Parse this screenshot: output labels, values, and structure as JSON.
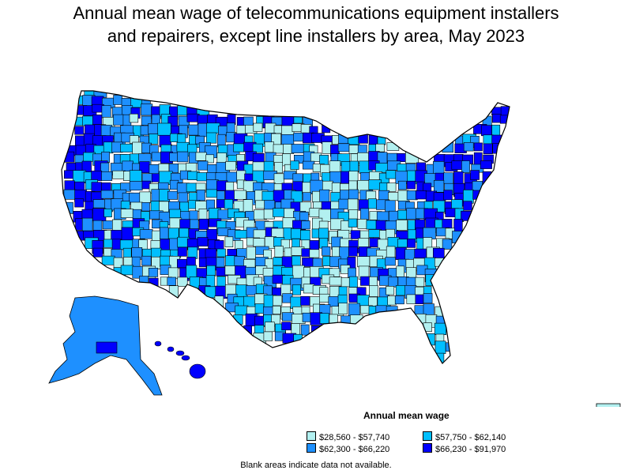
{
  "title": {
    "line1": "Annual mean wage of telecommunications equipment installers",
    "line2": "and repairers, except line installers by area, May 2023"
  },
  "legend": {
    "title": "Annual mean wage",
    "items": [
      {
        "label": "$28,560 - $57,740",
        "color": "#b2f0f0"
      },
      {
        "label": "$57,750 - $62,140",
        "color": "#00bfff"
      },
      {
        "label": "$62,300 - $66,220",
        "color": "#1e90ff"
      },
      {
        "label": "$66,230 - $91,970",
        "color": "#0000ff"
      }
    ]
  },
  "note": "Blank areas indicate data not available."
}
